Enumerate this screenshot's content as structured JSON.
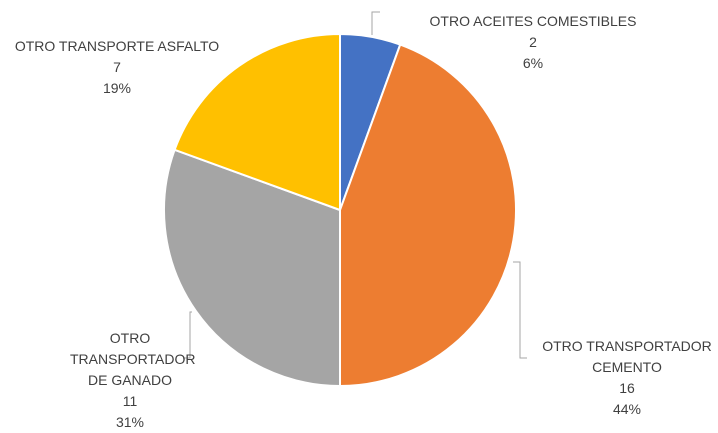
{
  "chart_data": {
    "type": "pie",
    "categories": [
      "OTRO ACEITES COMESTIBLES",
      "OTRO TRANSPORTADOR CEMENTO",
      "OTRO TRANSPORTADOR DE GANADO",
      "OTRO TRANSPORTE ASFALTO"
    ],
    "values": [
      2,
      16,
      11,
      7
    ],
    "percent_labels": [
      "6%",
      "44%",
      "31%",
      "19%"
    ],
    "colors": [
      "#4472c4",
      "#ed7d31",
      "#a5a5a5",
      "#ffc000"
    ]
  }
}
